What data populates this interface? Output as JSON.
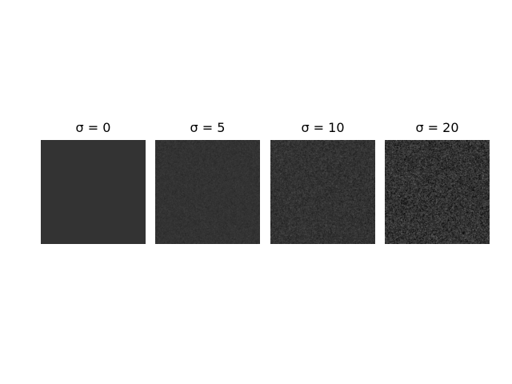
{
  "chart_data": {
    "type": "heatmap",
    "description_free": true,
    "panels": [
      {
        "title": "σ = 0",
        "sigma": 0,
        "mean_gray": 51
      },
      {
        "title": "σ = 5",
        "sigma": 5,
        "mean_gray": 51
      },
      {
        "title": "σ = 10",
        "sigma": 10,
        "mean_gray": 51
      },
      {
        "title": "σ = 20",
        "sigma": 20,
        "mean_gray": 51
      }
    ],
    "axes_visible": false,
    "grid": false,
    "colormap": "gray"
  }
}
